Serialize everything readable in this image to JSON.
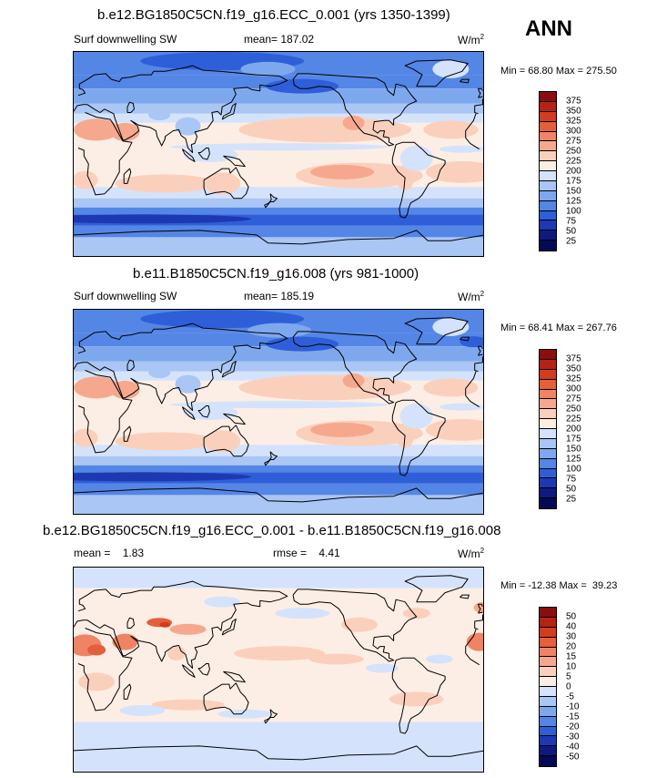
{
  "figure": {
    "season": "ANN"
  },
  "panels": [
    {
      "title": "b.e12.BG1850C5CN.f19_g16.ECC_0.001 (yrs 1350-1399)",
      "left_label": "Surf downwelling SW",
      "center_label": "mean= 187.02",
      "units_base": "W/m",
      "units_exp": "2",
      "stats": "Min =  68.80 Max = 275.50",
      "levels": [
        "375",
        "350",
        "325",
        "300",
        "275",
        "250",
        "225",
        "200",
        "175",
        "150",
        "125",
        "100",
        "75",
        "50",
        "25"
      ]
    },
    {
      "title": "b.e11.B1850C5CN.f19_g16.008 (yrs 981-1000)",
      "left_label": "Surf downwelling SW",
      "center_label": "mean= 185.19",
      "units_base": "W/m",
      "units_exp": "2",
      "stats": "Min =  68.41 Max = 267.76",
      "levels": [
        "375",
        "350",
        "325",
        "300",
        "275",
        "250",
        "225",
        "200",
        "175",
        "150",
        "125",
        "100",
        "75",
        "50",
        "25"
      ]
    },
    {
      "title": "b.e12.BG1850C5CN.f19_g16.ECC_0.001 - b.e11.B1850C5CN.f19_g16.008",
      "left_label": "mean =    1.83",
      "center_label": "rmse =    4.41",
      "units_base": "W/m",
      "units_exp": "2",
      "stats": "Min = -12.38 Max =  39.23",
      "levels": [
        "50",
        "40",
        "30",
        "20",
        "15",
        "10",
        "5",
        "0",
        "-5",
        "-10",
        "-15",
        "-20",
        "-30",
        "-40",
        "-50"
      ]
    }
  ],
  "colors": {
    "abs_scale": [
      "#8c0d0d",
      "#b52315",
      "#d33d1f",
      "#e45f3b",
      "#ef8464",
      "#f6a88e",
      "#fad0bd",
      "#fdeee5",
      "#d4e3fb",
      "#a9c6f4",
      "#7ea8ee",
      "#5486e6",
      "#2e5fd9",
      "#1c39b3",
      "#0f1a80",
      "#050a55"
    ],
    "diff_scale": [
      "#8c0d0d",
      "#b52315",
      "#d33d1f",
      "#e45f3b",
      "#ef8464",
      "#f6a88e",
      "#fad0bd",
      "#fdeee5",
      "#d4e3fb",
      "#a9c6f4",
      "#7ea8ee",
      "#5486e6",
      "#2e5fd9",
      "#1c39b3",
      "#0f1a80",
      "#050a55"
    ],
    "coastline": "#000000"
  },
  "chart_data": [
    {
      "type": "heatmap",
      "title": "b.e12.BG1850C5CN.f19_g16.ECC_0.001 (yrs 1350-1399)",
      "variable": "Surf downwelling SW",
      "units": "W/m2",
      "mean": 187.02,
      "min": 68.8,
      "max": 275.5,
      "contour_levels": [
        25,
        50,
        75,
        100,
        125,
        150,
        175,
        200,
        225,
        250,
        275,
        300,
        325,
        350,
        375
      ],
      "lon_range": [
        0,
        360
      ],
      "lat_range": [
        -90,
        90
      ]
    },
    {
      "type": "heatmap",
      "title": "b.e11.B1850C5CN.f19_g16.008 (yrs 981-1000)",
      "variable": "Surf downwelling SW",
      "units": "W/m2",
      "mean": 185.19,
      "min": 68.41,
      "max": 267.76,
      "contour_levels": [
        25,
        50,
        75,
        100,
        125,
        150,
        175,
        200,
        225,
        250,
        275,
        300,
        325,
        350,
        375
      ],
      "lon_range": [
        0,
        360
      ],
      "lat_range": [
        -90,
        90
      ]
    },
    {
      "type": "heatmap",
      "title": "b.e12.BG1850C5CN.f19_g16.ECC_0.001 - b.e11.B1850C5CN.f19_g16.008",
      "units": "W/m2",
      "mean": 1.83,
      "rmse": 4.41,
      "min": -12.38,
      "max": 39.23,
      "contour_levels": [
        -50,
        -40,
        -30,
        -20,
        -15,
        -10,
        -5,
        0,
        5,
        10,
        15,
        20,
        30,
        40,
        50
      ],
      "lon_range": [
        0,
        360
      ],
      "lat_range": [
        -90,
        90
      ]
    }
  ]
}
